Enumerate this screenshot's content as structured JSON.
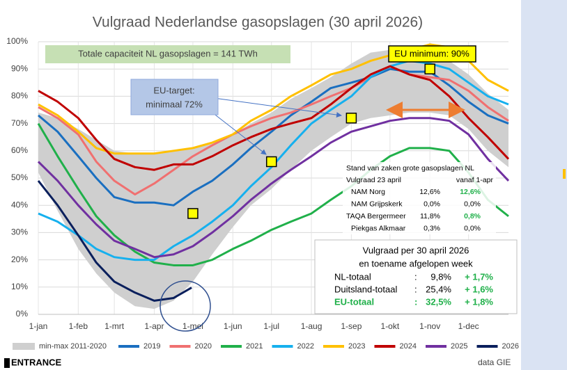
{
  "chart_data": {
    "type": "line",
    "title": "Vulgraad Nederlandse gasopslagen (30 april 2026)",
    "xlim": [
      0,
      365
    ],
    "xticks": [
      {
        "value": 0,
        "label": "1-jan"
      },
      {
        "value": 31,
        "label": "1-feb"
      },
      {
        "value": 59,
        "label": "1-mrt"
      },
      {
        "value": 90,
        "label": "1-apr"
      },
      {
        "value": 120,
        "label": "1-mei"
      },
      {
        "value": 151,
        "label": "1-jun"
      },
      {
        "value": 181,
        "label": "1-jul"
      },
      {
        "value": 212,
        "label": "1-aug"
      },
      {
        "value": 243,
        "label": "1-sep"
      },
      {
        "value": 273,
        "label": "1-okt"
      },
      {
        "value": 304,
        "label": "1-nov"
      },
      {
        "value": 334,
        "label": "1-dec"
      }
    ],
    "ylim": [
      0,
      100
    ],
    "yticks": [
      {
        "value": 0,
        "label": "0%"
      },
      {
        "value": 10,
        "label": "10%"
      },
      {
        "value": 20,
        "label": "20%"
      },
      {
        "value": 30,
        "label": "30%"
      },
      {
        "value": 40,
        "label": "40%"
      },
      {
        "value": 50,
        "label": "50%"
      },
      {
        "value": 60,
        "label": "60%"
      },
      {
        "value": 70,
        "label": "70%"
      },
      {
        "value": 80,
        "label": "80%"
      },
      {
        "value": 90,
        "label": "90%"
      },
      {
        "value": 100,
        "label": "100%"
      }
    ],
    "grid": true,
    "x": [
      0,
      15,
      31,
      45,
      59,
      75,
      90,
      105,
      120,
      135,
      151,
      165,
      181,
      196,
      212,
      227,
      243,
      258,
      273,
      288,
      304,
      319,
      334,
      349,
      365
    ],
    "band": {
      "name": "min-max 2011-2020",
      "color": "#cfcfcf",
      "lower": [
        52,
        38,
        24,
        15,
        8,
        3,
        2,
        5,
        12,
        22,
        32,
        40,
        46,
        53,
        60,
        65,
        70,
        72,
        73,
        74,
        74,
        73,
        68,
        60,
        54
      ],
      "upper": [
        74,
        72,
        68,
        64,
        60,
        59,
        59,
        60,
        61,
        63,
        66,
        70,
        74,
        79,
        83,
        87,
        92,
        96,
        97,
        97,
        96,
        93,
        88,
        81,
        75
      ]
    },
    "series": [
      {
        "name": "2019",
        "color": "#1a6fc0",
        "values": [
          73,
          67,
          58,
          50,
          43,
          41,
          41,
          40,
          45,
          49,
          55,
          61,
          67,
          73,
          78,
          83,
          85,
          87,
          90,
          89,
          89,
          84,
          78,
          73,
          70
        ]
      },
      {
        "name": "2020",
        "color": "#f07070",
        "values": [
          76,
          72,
          66,
          56,
          49,
          44,
          48,
          53,
          58,
          62,
          66,
          69,
          72,
          74,
          77,
          80,
          83,
          87,
          91,
          88,
          87,
          86,
          82,
          76,
          71
        ]
      },
      {
        "name": "2021",
        "color": "#20b04a",
        "values": [
          70,
          58,
          46,
          36,
          29,
          23,
          19,
          18,
          18,
          20,
          24,
          27,
          31,
          34,
          37,
          42,
          47,
          53,
          58,
          61,
          61,
          60,
          52,
          42,
          36
        ]
      },
      {
        "name": "2022",
        "color": "#16b0ee",
        "values": [
          37,
          34,
          29,
          24,
          21,
          20,
          20,
          25,
          29,
          34,
          40,
          47,
          54,
          62,
          70,
          75,
          80,
          87,
          91,
          93,
          92,
          90,
          85,
          80,
          77
        ]
      },
      {
        "name": "2023",
        "color": "#ffc000",
        "values": [
          77,
          73,
          67,
          61,
          59,
          59,
          59,
          60,
          61,
          63,
          66,
          71,
          75,
          80,
          84,
          88,
          90,
          93,
          95,
          97,
          99,
          98,
          93,
          86,
          82
        ]
      },
      {
        "name": "2024",
        "color": "#c00000",
        "values": [
          82,
          78,
          72,
          64,
          57,
          54,
          53,
          55,
          55,
          58,
          62,
          65,
          68,
          70,
          72,
          77,
          83,
          88,
          91,
          88,
          86,
          80,
          72,
          65,
          57
        ]
      },
      {
        "name": "2025",
        "color": "#7030a0",
        "values": [
          56,
          49,
          40,
          33,
          27,
          24,
          21,
          22,
          25,
          30,
          36,
          42,
          48,
          53,
          58,
          63,
          67,
          69,
          71,
          72,
          72,
          71,
          66,
          57,
          49
        ]
      },
      {
        "name": "2026",
        "color": "#0a1f5c",
        "x": [
          0,
          15,
          31,
          45,
          59,
          75,
          90,
          105,
          119
        ],
        "values": [
          49,
          40,
          29,
          19,
          12,
          8,
          5,
          6,
          9.8
        ]
      }
    ],
    "markers": {
      "color": "#ffff00",
      "x": [
        120,
        181,
        243,
        304
      ],
      "values": [
        37,
        56,
        72,
        90
      ]
    },
    "annotations": {
      "capacity": "Totale capaciteit NL gasopslagen = 141 TWh",
      "target": [
        "EU-target:",
        "minimaal 72%"
      ],
      "minimum": "EU minimum: 90%"
    },
    "table": {
      "title": "Stand van zaken grote gasopslagen NL",
      "header": [
        "Vulgraad 23 april",
        "vanaf 1-apr"
      ],
      "rows": [
        [
          "NAM Norg",
          "12,6%",
          "12,6%"
        ],
        [
          "NAM Grijpskerk",
          "0,0%",
          "0,0%"
        ],
        [
          "TAQA  Bergermeer",
          "11,8%",
          "0,8%"
        ],
        [
          "Piekgas Alkmaar",
          "0,3%",
          "0,0%"
        ]
      ]
    },
    "summary": {
      "title": [
        "Vulgraad per 30 april 2026",
        "en toename afgelopen week"
      ],
      "rows": [
        [
          "NL-totaal",
          ":",
          "9,8%",
          "+ 1,7%"
        ],
        [
          "Duitsland-totaal",
          ":",
          "25,4%",
          "+ 1,6%"
        ],
        [
          "EU-totaal",
          ":",
          "32,5%",
          "+ 1,8%"
        ]
      ]
    },
    "footer": {
      "logo": "ENTRANCE",
      "source": "data GIE"
    }
  }
}
